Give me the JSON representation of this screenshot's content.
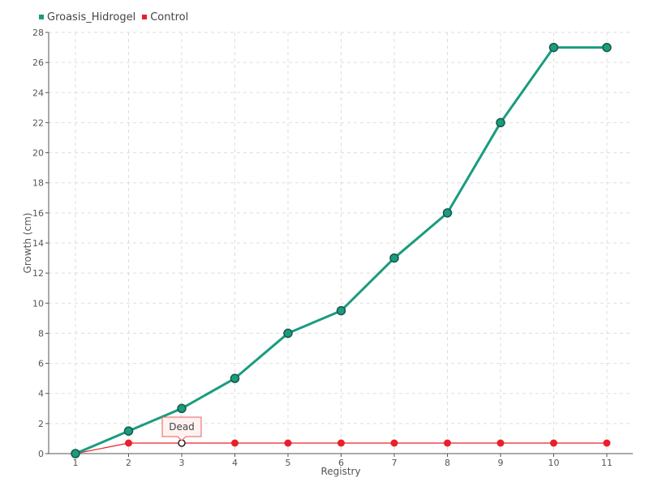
{
  "chart_data": {
    "type": "line",
    "title": "",
    "xlabel": "Registry",
    "ylabel": "Growth (cm)",
    "x": [
      "1",
      "2",
      "3",
      "4",
      "5",
      "6",
      "7",
      "8",
      "9",
      "10",
      "11"
    ],
    "ylim": [
      0,
      28
    ],
    "yticks": [
      0,
      2,
      4,
      6,
      8,
      10,
      12,
      14,
      16,
      18,
      20,
      22,
      24,
      26,
      28
    ],
    "grid": true,
    "legend_position": "top-left",
    "series": [
      {
        "name": "Groasis_Hidrogel",
        "color": "#1a9c7e",
        "values": [
          0,
          1.5,
          3,
          5,
          8,
          9.5,
          13,
          16,
          22,
          27,
          27
        ]
      },
      {
        "name": "Control",
        "color": "#e8202a",
        "values": [
          0,
          0.7,
          0.7,
          0.7,
          0.7,
          0.7,
          0.7,
          0.7,
          0.7,
          0.7,
          0.7
        ]
      }
    ],
    "annotations": [
      {
        "text": "Dead",
        "series": "Control",
        "x": "3"
      }
    ]
  }
}
